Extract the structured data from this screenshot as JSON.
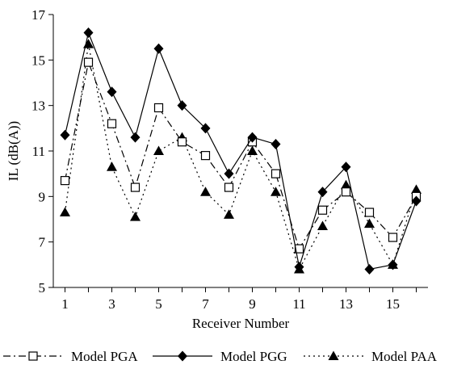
{
  "chart_data": {
    "type": "line",
    "xlabel": "Receiver Number",
    "ylabel": "IL (dB(A))",
    "x": [
      1,
      2,
      3,
      4,
      5,
      6,
      7,
      8,
      9,
      10,
      11,
      12,
      13,
      14,
      15,
      16
    ],
    "xticks": [
      "1",
      "3",
      "5",
      "7",
      "9",
      "11",
      "13",
      "15"
    ],
    "xlim": [
      0.5,
      16.5
    ],
    "ylim": [
      5,
      17
    ],
    "yticks": [
      "5",
      "7",
      "9",
      "11",
      "13",
      "15",
      "17"
    ],
    "grid": false,
    "legend_position": "bottom",
    "series": [
      {
        "name": "Model PGA",
        "marker": "open-square",
        "line_style": "dash-dot",
        "color": "#000000",
        "values": [
          9.7,
          14.9,
          12.2,
          9.4,
          12.9,
          11.4,
          10.8,
          9.4,
          11.4,
          10.0,
          6.7,
          8.4,
          9.2,
          8.3,
          7.2,
          9.0
        ]
      },
      {
        "name": "Model PGG",
        "marker": "filled-diamond",
        "line_style": "solid",
        "color": "#000000",
        "values": [
          11.7,
          16.2,
          13.6,
          11.6,
          15.5,
          13.0,
          12.0,
          10.0,
          11.6,
          11.3,
          5.9,
          9.2,
          10.3,
          5.8,
          6.0,
          8.8
        ]
      },
      {
        "name": "Model PAA",
        "marker": "filled-triangle",
        "line_style": "dotted",
        "color": "#000000",
        "values": [
          8.3,
          15.7,
          10.3,
          8.1,
          11.0,
          11.6,
          9.2,
          8.2,
          11.0,
          9.2,
          5.8,
          7.7,
          9.5,
          7.8,
          6.0,
          9.3
        ]
      }
    ]
  }
}
